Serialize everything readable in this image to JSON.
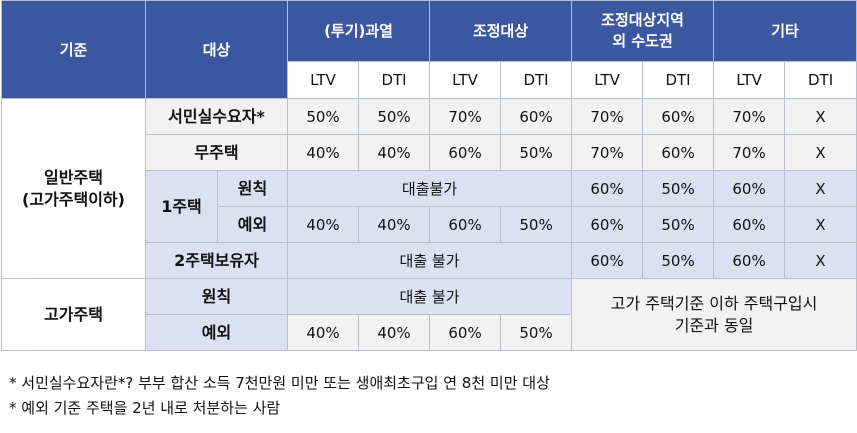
{
  "header": {
    "criteria": "기준",
    "target": "대상",
    "groups": [
      "(투기)과열",
      "조정대상",
      "조정대상지역\n외 수도권",
      "기타"
    ],
    "sub": [
      "LTV",
      "DTI",
      "LTV",
      "DTI",
      "LTV",
      "DTI",
      "LTV",
      "DTI"
    ]
  },
  "general_housing": {
    "label": "일반주택\n(고가주택이하)",
    "rows": [
      {
        "target": "서민실수요자*",
        "values": [
          "50%",
          "50%",
          "70%",
          "60%",
          "70%",
          "60%",
          "70%",
          "X"
        ]
      },
      {
        "target": "무주택",
        "values": [
          "40%",
          "40%",
          "60%",
          "50%",
          "70%",
          "60%",
          "70%",
          "X"
        ]
      }
    ],
    "one_house": {
      "label": "1주택",
      "principle": {
        "label": "원칙",
        "span_text": "대출불가",
        "values": [
          "60%",
          "50%",
          "60%",
          "X"
        ]
      },
      "exception": {
        "label": "예외",
        "values": [
          "40%",
          "40%",
          "60%",
          "50%",
          "60%",
          "50%",
          "60%",
          "X"
        ]
      }
    },
    "two_houses": {
      "label": "2주택보유자",
      "span_text": "대출 불가",
      "values": [
        "60%",
        "50%",
        "60%",
        "X"
      ]
    }
  },
  "expensive_housing": {
    "label": "고가주택",
    "principle": {
      "label": "원칙",
      "span_text": "대출 불가"
    },
    "exception": {
      "label": "예외",
      "values": [
        "40%",
        "40%",
        "60%",
        "50%"
      ]
    },
    "note_cell": "고가 주택기준 이하 주택구입시\n기준과 동일"
  },
  "footnotes": [
    "* 서민실수요자란*? 부부 합산 소득 7천만원 미만 또는 생애최초구입 연 8천 미만 대상",
    "* 예외 기준 주택을 2년 내로 처분하는 사람"
  ]
}
